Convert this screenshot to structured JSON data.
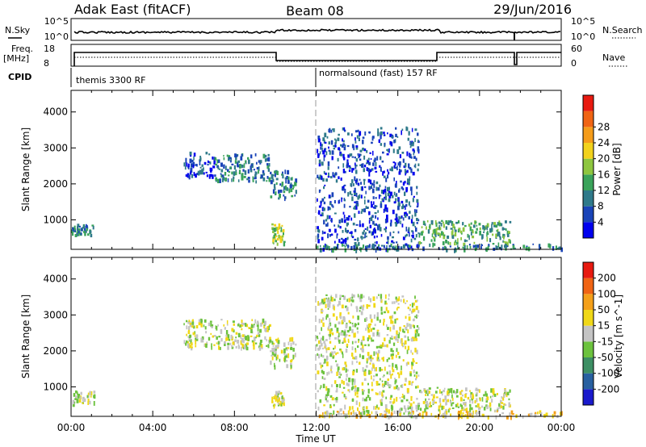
{
  "header": {
    "title_left": "Adak East (fitACF)",
    "title_center": "Beam 08",
    "title_right": "29/Jun/2016"
  },
  "top_panels": {
    "nsky_label": "N.Sky",
    "nsearch_label": "N.Search",
    "nsky_ticks": [
      "10^5",
      "10^0"
    ],
    "nsearch_ticks": [
      "10^5",
      "10^0"
    ],
    "freq_label_1": "Freq.",
    "freq_label_2": "[MHz]",
    "freq_ticks": [
      "18",
      "8"
    ],
    "nave_label": "Nave",
    "nave_ticks": [
      "60",
      "0"
    ],
    "cpid_label": "CPID",
    "cpid_segments": [
      {
        "name": "themis 3300 RF",
        "start_hour": 0
      },
      {
        "name": "normalsound (fast) 157 RF",
        "start_hour": 12
      }
    ]
  },
  "x_axis": {
    "label": "Time UT",
    "ticks": [
      "00:00",
      "04:00",
      "08:00",
      "12:00",
      "16:00",
      "20:00",
      "00:00"
    ],
    "range_hours": [
      0,
      24
    ]
  },
  "chart_data": [
    {
      "type": "heatmap",
      "name": "power",
      "ylabel": "Slant Range [km]",
      "ylim": [
        180,
        4600
      ],
      "yticks": [
        "1000",
        "2000",
        "3000",
        "4000"
      ],
      "colorbar": {
        "label": "Power [dB]",
        "ticks": [
          "4",
          "8",
          "12",
          "16",
          "20",
          "24",
          "28"
        ],
        "colors": [
          "#0000ee",
          "#1a44b8",
          "#2f7a8a",
          "#3aa35a",
          "#8ec63f",
          "#f2d21c",
          "#f59c1a",
          "#f06414",
          "#e81a10"
        ],
        "range": [
          0,
          30
        ]
      },
      "regions": [
        {
          "t0": 0.0,
          "t1": 1.1,
          "r0": 600,
          "r1": 900,
          "level": 2
        },
        {
          "t0": 5.5,
          "t1": 7.0,
          "r0": 2200,
          "r1": 2900,
          "level": 1
        },
        {
          "t0": 7.0,
          "t1": 9.7,
          "r0": 2100,
          "r1": 2850,
          "level": 2
        },
        {
          "t0": 9.7,
          "t1": 11.0,
          "r0": 1600,
          "r1": 2400,
          "level": 2
        },
        {
          "t0": 9.8,
          "t1": 10.4,
          "r0": 350,
          "r1": 950,
          "level": 4
        },
        {
          "t0": 12.0,
          "t1": 17.0,
          "r0": 200,
          "r1": 3600,
          "level": 1
        },
        {
          "t0": 17.0,
          "t1": 21.5,
          "r0": 350,
          "r1": 1000,
          "level": 3
        },
        {
          "t0": 12.0,
          "t1": 24.0,
          "r0": 200,
          "r1": 350,
          "level": 2
        }
      ]
    },
    {
      "type": "heatmap",
      "name": "velocity",
      "ylabel": "Slant Range [km]",
      "ylim": [
        180,
        4600
      ],
      "yticks": [
        "1000",
        "2000",
        "3000",
        "4000"
      ],
      "colorbar": {
        "label": "Velocity [m s^-1]",
        "ticks": [
          "200",
          "100",
          "50",
          "15",
          "-15",
          "-50",
          "-100",
          "-200"
        ],
        "colors": [
          "#1a1acc",
          "#2860a0",
          "#3d8f64",
          "#6cc23e",
          "#c4c4c4",
          "#f0d818",
          "#f4a01a",
          "#f06414",
          "#e81a10"
        ],
        "range": [
          -250,
          250
        ]
      },
      "regions": [
        {
          "t0": 0.0,
          "t1": 1.1,
          "r0": 550,
          "r1": 900,
          "level": 4
        },
        {
          "t0": 5.5,
          "t1": 9.7,
          "r0": 2100,
          "r1": 2900,
          "level": 4
        },
        {
          "t0": 9.7,
          "t1": 11.0,
          "r0": 1600,
          "r1": 2400,
          "level": 4
        },
        {
          "t0": 9.8,
          "t1": 10.4,
          "r0": 500,
          "r1": 900,
          "level": 4
        },
        {
          "t0": 12.0,
          "t1": 17.0,
          "r0": 200,
          "r1": 3600,
          "level": 4
        },
        {
          "t0": 17.0,
          "t1": 21.5,
          "r0": 350,
          "r1": 1000,
          "level": 4
        },
        {
          "t0": 12.0,
          "t1": 24.0,
          "r0": 200,
          "r1": 350,
          "level": 5
        }
      ]
    }
  ]
}
